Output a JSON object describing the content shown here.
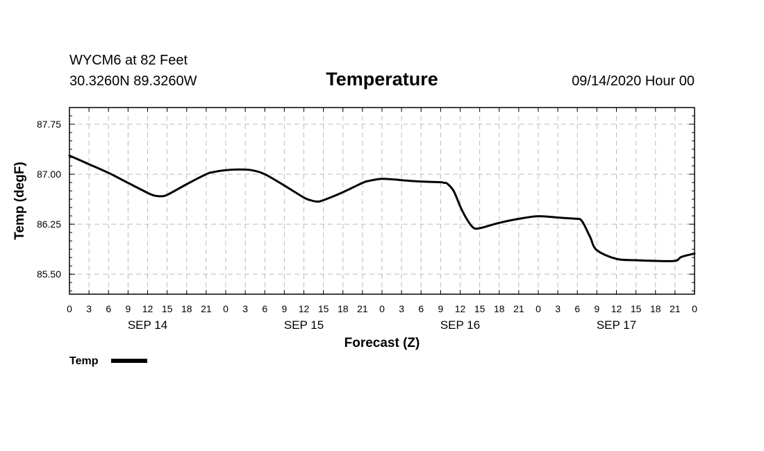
{
  "header": {
    "station": "WYCM6 at 82 Feet",
    "coords": "30.3260N 89.3260W",
    "datetime": "09/14/2020 Hour 00"
  },
  "chart_data": {
    "type": "line",
    "title": "Temperature",
    "xlabel": "Forecast (Z)",
    "ylabel": "Temp (degF)",
    "x_unit": "forecast hour",
    "xlim": [
      0,
      96
    ],
    "ylim": [
      85.2,
      88.0
    ],
    "y_ticks": [
      85.5,
      86.25,
      87.0,
      87.75
    ],
    "y_tick_labels": [
      "85.50",
      "86.25",
      "87.00",
      "87.75"
    ],
    "x_ticks": [
      0,
      3,
      6,
      9,
      12,
      15,
      18,
      21,
      24,
      27,
      30,
      33,
      36,
      39,
      42,
      45,
      48,
      51,
      54,
      57,
      60,
      63,
      66,
      69,
      72,
      75,
      78,
      81,
      84,
      87,
      90,
      93,
      96
    ],
    "x_tick_labels": [
      "0",
      "3",
      "6",
      "9",
      "12",
      "15",
      "18",
      "21",
      "0",
      "3",
      "6",
      "9",
      "12",
      "15",
      "18",
      "21",
      "0",
      "3",
      "6",
      "9",
      "12",
      "15",
      "18",
      "21",
      "0",
      "3",
      "6",
      "9",
      "12",
      "15",
      "18",
      "21",
      "0"
    ],
    "day_labels": [
      {
        "label": "SEP 14",
        "x": 12
      },
      {
        "label": "SEP 15",
        "x": 36
      },
      {
        "label": "SEP 16",
        "x": 60
      },
      {
        "label": "SEP 17",
        "x": 84
      }
    ],
    "grid": true,
    "legend": {
      "position": "bottom-left",
      "entries": [
        "Temp"
      ]
    },
    "series": [
      {
        "name": "Temp",
        "color": "#000000",
        "x": [
          0,
          3,
          6,
          9,
          12,
          13,
          14,
          15,
          18,
          21,
          22,
          24,
          26,
          28,
          30,
          33,
          36,
          37,
          38,
          39,
          42,
          45,
          46,
          48,
          50,
          51,
          54,
          57,
          57.5,
          58,
          59,
          60,
          61,
          62,
          63,
          66,
          69,
          72,
          75,
          78,
          78.5,
          79,
          80,
          81,
          84,
          87,
          90,
          93,
          94,
          96
        ],
        "y": [
          87.28,
          87.15,
          87.02,
          86.87,
          86.72,
          86.68,
          86.67,
          86.69,
          86.85,
          87.0,
          87.03,
          87.06,
          87.07,
          87.06,
          87.0,
          86.83,
          86.65,
          86.61,
          86.59,
          86.61,
          86.73,
          86.87,
          86.9,
          86.93,
          86.92,
          86.91,
          86.89,
          86.88,
          86.87,
          86.86,
          86.75,
          86.52,
          86.33,
          86.2,
          86.19,
          86.27,
          86.33,
          86.37,
          86.35,
          86.33,
          86.32,
          86.25,
          86.05,
          85.86,
          85.73,
          85.71,
          85.7,
          85.7,
          85.76,
          85.81
        ]
      }
    ]
  }
}
